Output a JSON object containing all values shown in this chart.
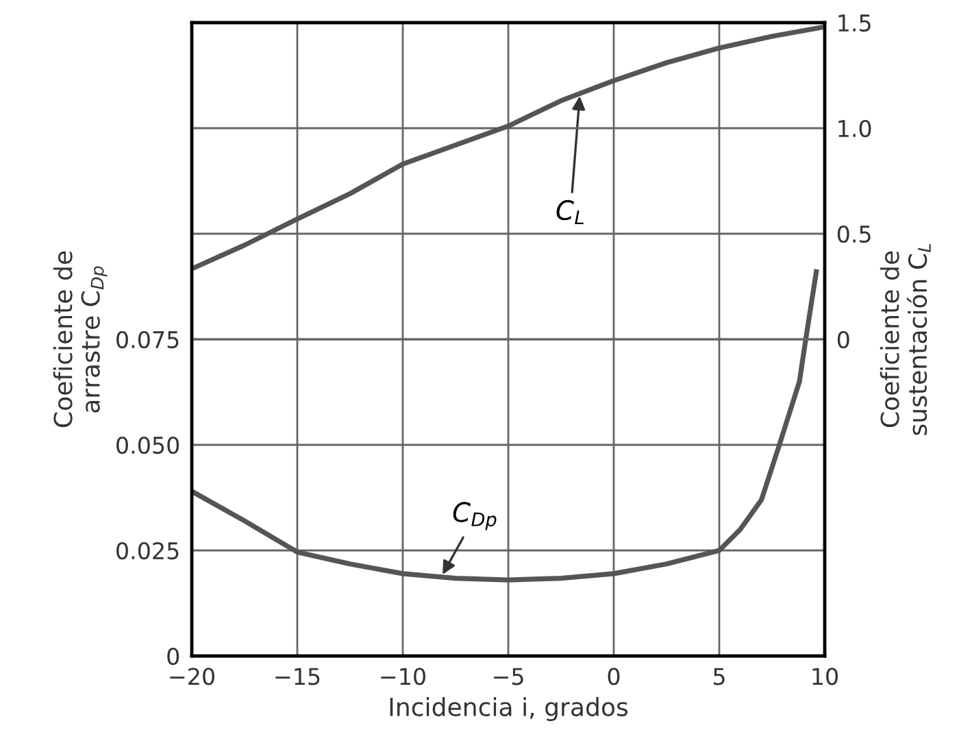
{
  "chart_data": {
    "type": "line",
    "xlabel": "Incidencia i, grados",
    "ylabel": "Coeficiente de\narrastre C$_{Dp}$",
    "y2label": "Coeficiente de\nsustentación C$_{L}$",
    "xlim": [
      -20,
      10
    ],
    "xticks": [
      {
        "value": -20,
        "label": "−20"
      },
      {
        "value": -15,
        "label": "−15"
      },
      {
        "value": -10,
        "label": "−10"
      },
      {
        "value": -5,
        "label": "−5"
      },
      0,
      5,
      10
    ],
    "ylim": [
      0,
      0.15
    ],
    "yticks": [
      0,
      0.025,
      {
        "value": 0.05,
        "label": "0.050"
      },
      0.075
    ],
    "y2lim": [
      -1.5,
      1.5
    ],
    "y2ticks": [
      0,
      0.5,
      {
        "value": 1.0,
        "label": "1.0"
      },
      1.5
    ],
    "grid": true,
    "marker": "none",
    "line_style": "solid",
    "series": [
      {
        "color": "#555555",
        "x": [
          -20,
          -17.5,
          -15,
          -12.5,
          -10,
          -7.5,
          -5,
          -2.5,
          0,
          2.5,
          5,
          6,
          7,
          7.85,
          8.8,
          9.1,
          9.6
        ],
        "values": [
          0.039,
          0.032,
          0.0246,
          0.0218,
          0.0195,
          0.0184,
          0.018,
          0.0184,
          0.0195,
          0.0218,
          0.025,
          0.03,
          0.037,
          0.05,
          0.065,
          0.075,
          0.091
        ]
      },
      {
        "color": "#555555",
        "axis": "y2",
        "x": [
          -20,
          -17.5,
          -15,
          -12.5,
          -10,
          -7.5,
          -5,
          -2.5,
          0,
          2.5,
          5,
          7.5,
          10
        ],
        "values": [
          0.334,
          0.446,
          0.57,
          0.69,
          0.83,
          0.92,
          1.01,
          1.13,
          1.225,
          1.31,
          1.38,
          1.435,
          1.48
        ]
      }
    ],
    "annotations": [
      {
        "text": "C$_{Dp}$",
        "x": -8.2,
        "y": 0.0185
      },
      {
        "text": "C$_{L}$",
        "x": -1.6,
        "y": 0.1335
      }
    ]
  }
}
